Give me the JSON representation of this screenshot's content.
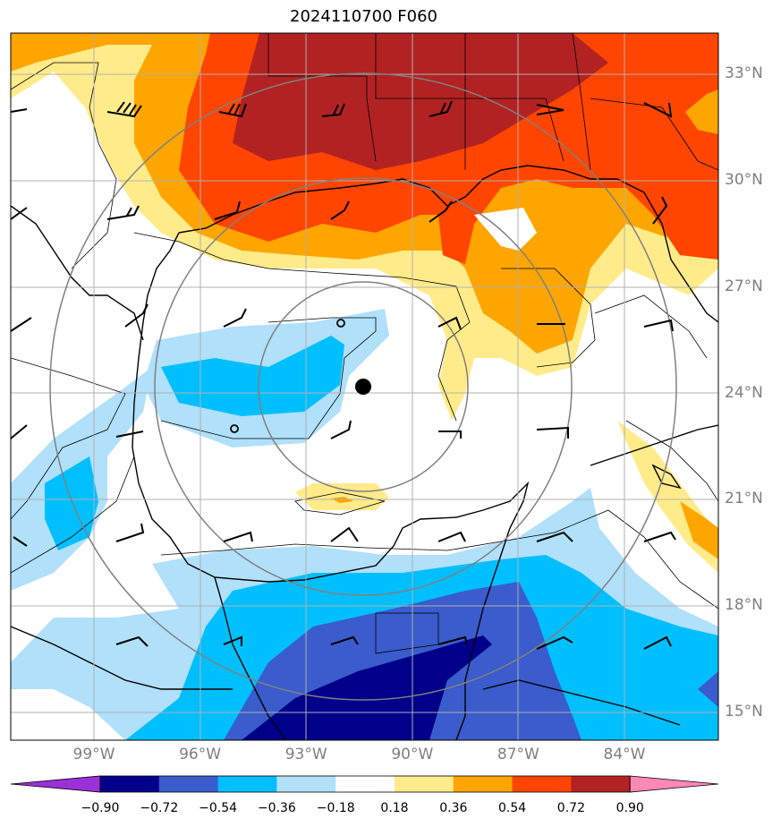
{
  "title": "2024110700 F060",
  "lat_labels": [
    {
      "text": "33°N",
      "value": 33
    },
    {
      "text": "30°N",
      "value": 30
    },
    {
      "text": "27°N",
      "value": 27
    },
    {
      "text": "24°N",
      "value": 24
    },
    {
      "text": "21°N",
      "value": 21
    },
    {
      "text": "18°N",
      "value": 18
    },
    {
      "text": "15°N",
      "value": 15
    }
  ],
  "lon_labels": [
    {
      "text": "99°W",
      "value": -99
    },
    {
      "text": "96°W",
      "value": -96
    },
    {
      "text": "93°W",
      "value": -93
    },
    {
      "text": "90°W",
      "value": -90
    },
    {
      "text": "87°W",
      "value": -87
    },
    {
      "text": "84°W",
      "value": -84
    }
  ],
  "colorbar": {
    "labels": [
      "−0.90",
      "−0.72",
      "−0.54",
      "−0.36",
      "−0.18",
      "0.18",
      "0.36",
      "0.54",
      "0.72",
      "0.90"
    ],
    "colors": [
      "#9b30d9",
      "#00008b",
      "#3a5ccc",
      "#00bfff",
      "#b0e0fa",
      "#ffffff",
      "#ffeb8a",
      "#ffa500",
      "#ff4500",
      "#b22222",
      "#ff88b5"
    ]
  },
  "map": {
    "storm_center": {
      "lon": -91.2,
      "lat": 24.2
    },
    "range_rings_deg": [
      3,
      6,
      9
    ]
  }
}
